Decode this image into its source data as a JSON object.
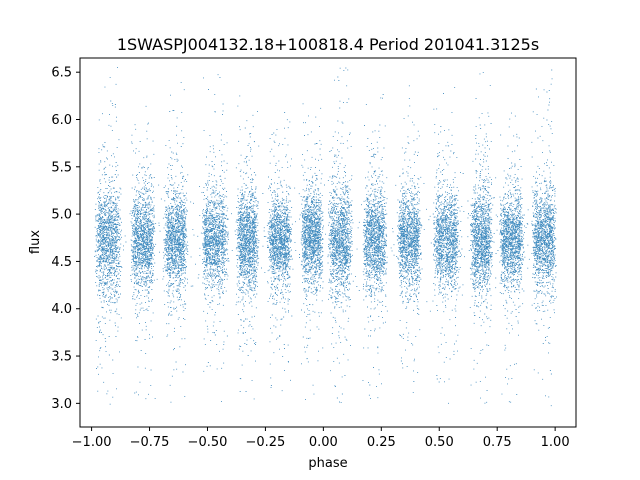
{
  "chart_data": {
    "type": "scatter",
    "title": "1SWASPJ004132.18+100818.4 Period 201041.3125s",
    "xlabel": "phase",
    "ylabel": "flux",
    "xlim": [
      -1.05,
      1.09
    ],
    "ylim": [
      2.75,
      6.65
    ],
    "xticks": [
      -1.0,
      -0.75,
      -0.5,
      -0.25,
      0.0,
      0.25,
      0.5,
      0.75,
      1.0
    ],
    "xtick_labels": [
      "−1.00",
      "−0.75",
      "−0.50",
      "−0.25",
      "0.00",
      "0.25",
      "0.50",
      "0.75",
      "1.00"
    ],
    "yticks": [
      3.0,
      3.5,
      4.0,
      4.5,
      5.0,
      5.5,
      6.0,
      6.5
    ],
    "ytick_labels": [
      "3.0",
      "3.5",
      "4.0",
      "4.5",
      "5.0",
      "5.5",
      "6.0",
      "6.5"
    ],
    "grid": false,
    "marker_color": "#1f77b4",
    "series": [
      {
        "clusters": [
          {
            "center": -0.93,
            "width": 0.06,
            "mean": 4.72,
            "spread": 0.28,
            "tail": [
              2.95,
              6.55
            ]
          },
          {
            "center": -0.78,
            "width": 0.055,
            "mean": 4.72,
            "spread": 0.24,
            "tail": [
              3.0,
              6.2
            ]
          },
          {
            "center": -0.64,
            "width": 0.055,
            "mean": 4.72,
            "spread": 0.24,
            "tail": [
              3.0,
              6.4
            ]
          },
          {
            "center": -0.47,
            "width": 0.06,
            "mean": 4.72,
            "spread": 0.24,
            "tail": [
              3.0,
              6.5
            ]
          },
          {
            "center": -0.33,
            "width": 0.05,
            "mean": 4.72,
            "spread": 0.26,
            "tail": [
              3.0,
              6.5
            ]
          },
          {
            "center": -0.19,
            "width": 0.055,
            "mean": 4.72,
            "spread": 0.22,
            "tail": [
              3.0,
              6.1
            ]
          },
          {
            "center": -0.05,
            "width": 0.05,
            "mean": 4.75,
            "spread": 0.24,
            "tail": [
              3.0,
              6.2
            ]
          },
          {
            "center": 0.07,
            "width": 0.055,
            "mean": 4.72,
            "spread": 0.28,
            "tail": [
              2.95,
              6.55
            ]
          },
          {
            "center": 0.22,
            "width": 0.055,
            "mean": 4.72,
            "spread": 0.24,
            "tail": [
              3.0,
              6.3
            ]
          },
          {
            "center": 0.37,
            "width": 0.055,
            "mean": 4.72,
            "spread": 0.24,
            "tail": [
              3.0,
              6.4
            ]
          },
          {
            "center": 0.53,
            "width": 0.06,
            "mean": 4.72,
            "spread": 0.24,
            "tail": [
              3.0,
              6.5
            ]
          },
          {
            "center": 0.68,
            "width": 0.05,
            "mean": 4.72,
            "spread": 0.26,
            "tail": [
              3.0,
              6.5
            ]
          },
          {
            "center": 0.81,
            "width": 0.055,
            "mean": 4.72,
            "spread": 0.22,
            "tail": [
              3.0,
              6.1
            ]
          },
          {
            "center": 0.95,
            "width": 0.055,
            "mean": 4.74,
            "spread": 0.24,
            "tail": [
              2.95,
              6.55
            ]
          }
        ]
      }
    ]
  }
}
